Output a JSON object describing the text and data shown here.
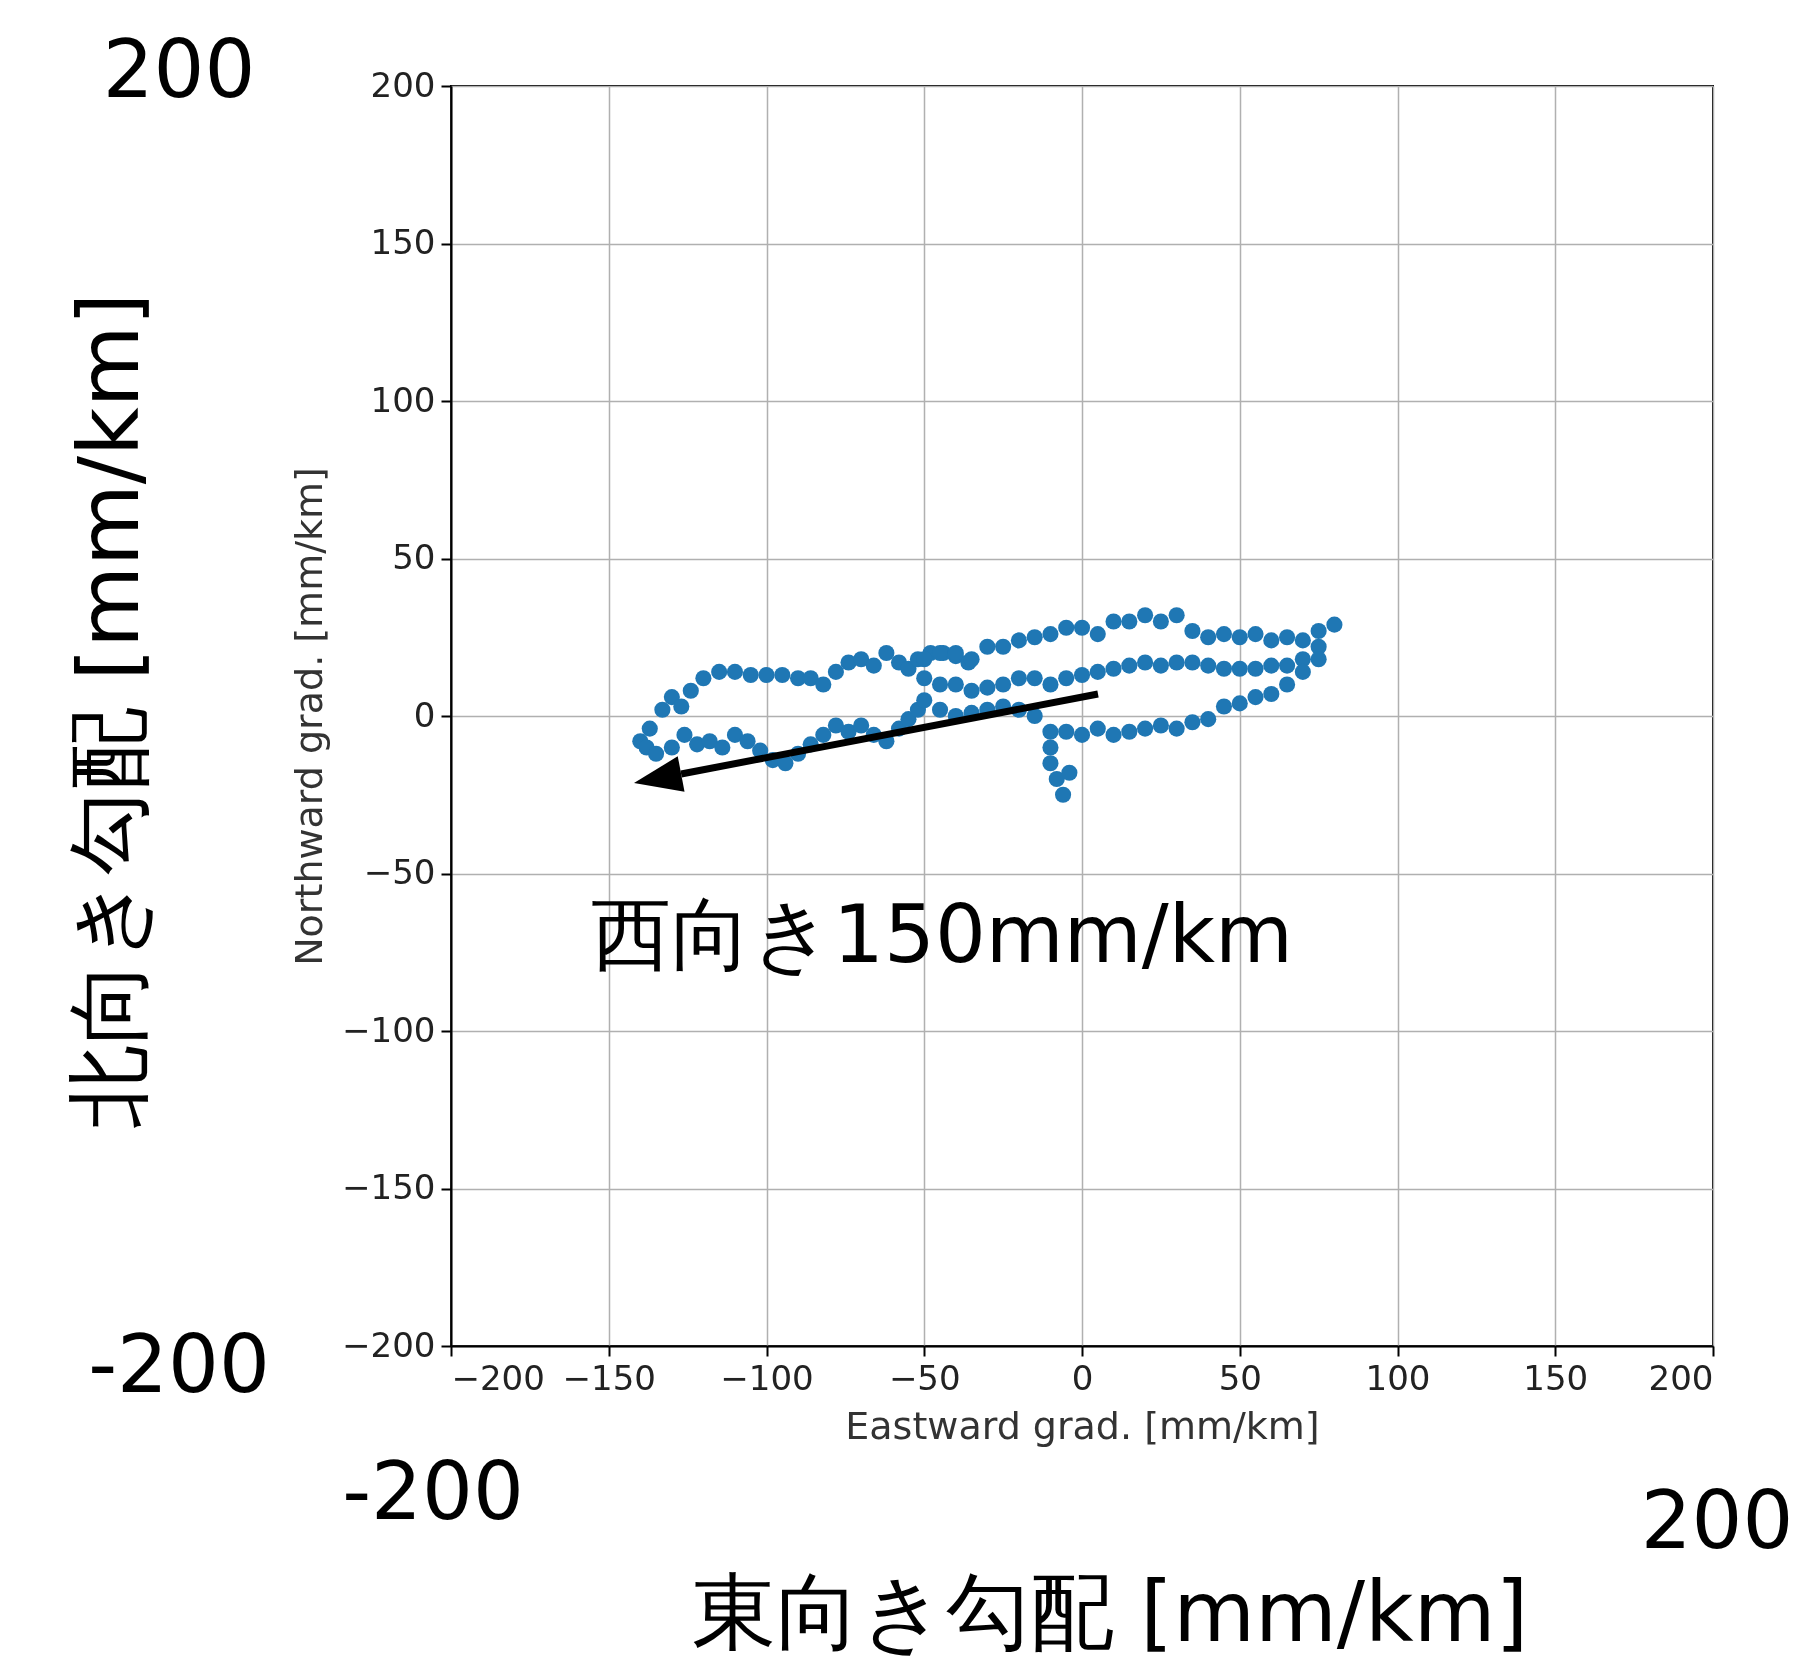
{
  "chart_data": {
    "type": "scatter",
    "xlabel": "Eastward grad. [mm/km]",
    "ylabel": "Northward grad. [mm/km]",
    "xlim": [
      -200,
      200
    ],
    "ylim": [
      -200,
      200
    ],
    "xticks": [
      {
        "value": -200,
        "label": "−200"
      },
      {
        "value": -150,
        "label": "−150"
      },
      {
        "value": -100,
        "label": "−100"
      },
      {
        "value": -50,
        "label": "−50"
      },
      0,
      50,
      100,
      150,
      200
    ],
    "yticks": [
      {
        "value": -200,
        "label": "−200"
      },
      {
        "value": -150,
        "label": "−150"
      },
      {
        "value": -100,
        "label": "−100"
      },
      {
        "value": -50,
        "label": "−50"
      },
      0,
      50,
      100,
      150,
      200
    ],
    "grid": true,
    "marker": "circle",
    "series": [
      {
        "color": "#1f77b4",
        "x": [
          -140,
          -137,
          -133,
          -130,
          -127,
          -124,
          -120,
          -115,
          -110,
          -105,
          -100,
          -95,
          -90,
          -86,
          -82,
          -78,
          -74,
          -70,
          -66,
          -62,
          -58,
          -55,
          -52,
          -48,
          -44,
          -40,
          -36,
          -138,
          -135,
          -130,
          -126,
          -122,
          -118,
          -114,
          -110,
          -106,
          -102,
          -98,
          -94,
          -90,
          -86,
          -82,
          -78,
          -74,
          -70,
          -66,
          -62,
          -58,
          -55,
          -52,
          -50,
          -50,
          -50,
          -45,
          -45,
          -45,
          -40,
          -40,
          -40,
          -35,
          -35,
          -35,
          -30,
          -30,
          -30,
          -25,
          -25,
          -25,
          -20,
          -20,
          -20,
          -15,
          -15,
          -15,
          -10,
          -10,
          -10,
          -5,
          -5,
          -5,
          0,
          0,
          0,
          5,
          5,
          5,
          10,
          10,
          10,
          15,
          15,
          15,
          20,
          20,
          20,
          25,
          25,
          25,
          30,
          30,
          30,
          35,
          35,
          35,
          40,
          40,
          40,
          45,
          45,
          45,
          50,
          50,
          50,
          55,
          55,
          55,
          60,
          60,
          60,
          65,
          65,
          65,
          70,
          70,
          70,
          75,
          75,
          75,
          80,
          -10,
          -8,
          -6,
          -4,
          -10
        ],
        "values": [
          -8,
          -4,
          2,
          6,
          3,
          8,
          12,
          14,
          14,
          13,
          13,
          13,
          12,
          12,
          10,
          14,
          17,
          18,
          16,
          20,
          17,
          15,
          18,
          20,
          20,
          19,
          17,
          -10,
          -12,
          -10,
          -6,
          -9,
          -8,
          -10,
          -6,
          -8,
          -11,
          -14,
          -15,
          -12,
          -9,
          -6,
          -3,
          -5,
          -3,
          -6,
          -8,
          -4,
          -1,
          2,
          5,
          12,
          18,
          20,
          10,
          2,
          20,
          10,
          0,
          18,
          8,
          1,
          22,
          9,
          2,
          22,
          10,
          3,
          24,
          12,
          2,
          25,
          12,
          0,
          26,
          10,
          -5,
          28,
          12,
          -5,
          28,
          13,
          -6,
          26,
          14,
          -4,
          30,
          15,
          -6,
          30,
          16,
          -5,
          32,
          17,
          -4,
          30,
          16,
          -3,
          32,
          17,
          -4,
          27,
          17,
          -2,
          25,
          16,
          -1,
          26,
          15,
          3,
          25,
          15,
          4,
          26,
          15,
          6,
          24,
          16,
          7,
          25,
          16,
          10,
          24,
          18,
          14,
          27,
          22,
          18,
          29,
          -15,
          -20,
          -25,
          -18,
          -10
        ]
      }
    ],
    "annotations": [
      "西向き150mm/km",
      "200",
      "-200",
      "-200",
      "200",
      "東向き勾配 [mm/km]",
      "北向き勾配 [mm/km]"
    ]
  }
}
